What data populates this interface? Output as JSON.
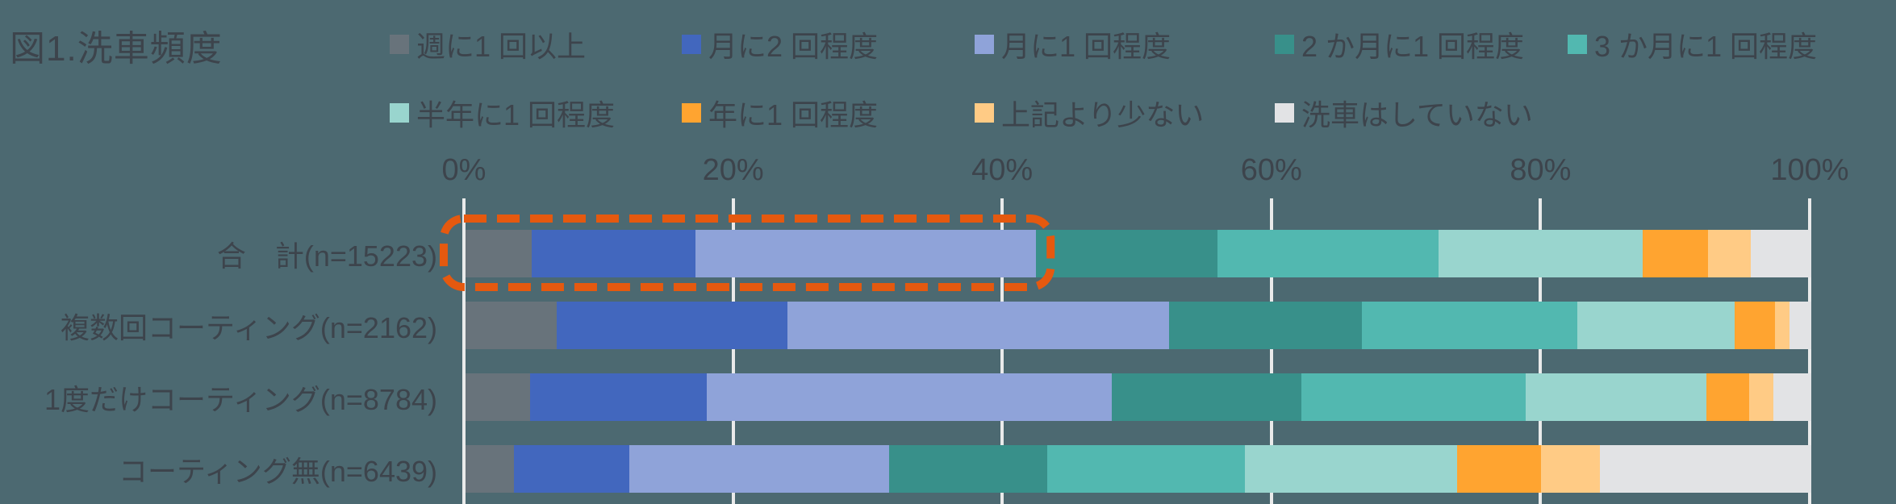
{
  "title": "図1.洗車頻度",
  "colors": {
    "background": "#4C6971",
    "text": "#3D444C",
    "gridline": "#E9EAEA",
    "annotation_box": "#E5590F"
  },
  "axis": {
    "tick_labels": [
      "0%",
      "20%",
      "40%",
      "60%",
      "80%",
      "100%"
    ],
    "range": [
      0,
      100
    ]
  },
  "chart_data": {
    "type": "bar",
    "orientation": "horizontal",
    "stacked": true,
    "title": "図1.洗車頻度",
    "xlabel": "",
    "ylabel": "",
    "xlim": [
      0,
      100
    ],
    "grid": true,
    "legend_position": "top",
    "categories": [
      "合　計(n=15223)",
      "複数回コーティング(n=2162)",
      "1度だけコーティング(n=8784)",
      "コーティング無(n=6439)"
    ],
    "series": [
      {
        "name": "週に1 回以上",
        "color": "#68737B",
        "values": [
          4.9,
          6.8,
          4.8,
          3.6
        ]
      },
      {
        "name": "月に2 回程度",
        "color": "#4267BE",
        "values": [
          12.2,
          17.1,
          13.1,
          8.6
        ]
      },
      {
        "name": "月に1 回程度",
        "color": "#8FA3D9",
        "values": [
          25.3,
          28.4,
          30.1,
          19.3
        ]
      },
      {
        "name": "2 か月に1 回程度",
        "color": "#38908A",
        "values": [
          13.5,
          14.3,
          14.1,
          11.7
        ]
      },
      {
        "name": "3 か月に1 回程度",
        "color": "#52B8B0",
        "values": [
          16.4,
          16.0,
          16.7,
          14.7
        ]
      },
      {
        "name": "半年に1 回程度",
        "color": "#99D5CE",
        "values": [
          15.2,
          11.7,
          13.4,
          15.8
        ]
      },
      {
        "name": "年に1 回程度",
        "color": "#FFA430",
        "values": [
          4.8,
          3.0,
          3.2,
          6.2
        ]
      },
      {
        "name": "上記より少ない",
        "color": "#FFCB85",
        "values": [
          3.2,
          1.1,
          1.8,
          4.4
        ]
      },
      {
        "name": "洗車はしていない",
        "color": "#E2E3E5",
        "values": [
          4.5,
          1.6,
          2.8,
          15.7
        ]
      }
    ],
    "annotation": {
      "type": "dashed-box",
      "description": "orange dashed rounded box highlighting first three segments of top bar",
      "target_row": 0,
      "from_pct": -1.8,
      "to_pct": 43.9,
      "color": "#E5590F"
    }
  }
}
